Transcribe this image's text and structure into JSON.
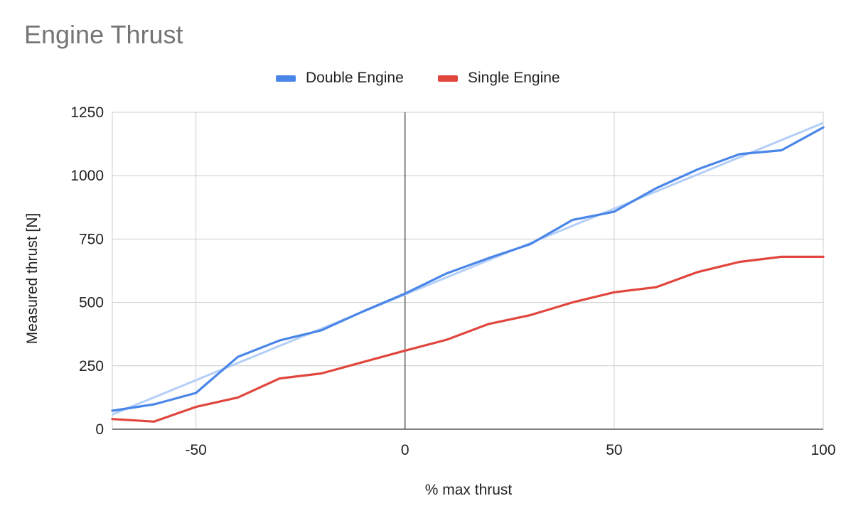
{
  "chart_data": {
    "type": "line",
    "title": "Engine Thrust",
    "xlabel": "% max thrust",
    "ylabel": "Measured thrust [N]",
    "xlim": [
      -70,
      100
    ],
    "ylim": [
      0,
      1250
    ],
    "xticks": [
      -50,
      0,
      50,
      100
    ],
    "yticks": [
      0,
      250,
      500,
      750,
      1000,
      1250
    ],
    "grid": true,
    "legend_position": "top",
    "series": [
      {
        "name": "Double Engine",
        "color": "#4a86e8",
        "x": [
          -70,
          -60,
          -50,
          -40,
          -30,
          -20,
          -10,
          0,
          10,
          20,
          30,
          40,
          50,
          60,
          70,
          80,
          90,
          100
        ],
        "y": [
          73,
          98,
          143,
          285,
          350,
          390,
          465,
          535,
          615,
          675,
          730,
          825,
          858,
          950,
          1025,
          1085,
          1100,
          1190
        ]
      },
      {
        "name": "Single Engine",
        "color": "#e0463d",
        "x": [
          -70,
          -60,
          -50,
          -40,
          -30,
          -20,
          -10,
          0,
          10,
          20,
          30,
          40,
          50,
          60,
          70,
          80,
          90,
          100
        ],
        "y": [
          40,
          30,
          88,
          125,
          200,
          220,
          265,
          310,
          353,
          415,
          450,
          500,
          540,
          560,
          620,
          660,
          680,
          680
        ]
      }
    ],
    "trendline": {
      "color": "#b4cff7",
      "x": [
        -70,
        100
      ],
      "y": [
        58,
        1208
      ]
    }
  }
}
